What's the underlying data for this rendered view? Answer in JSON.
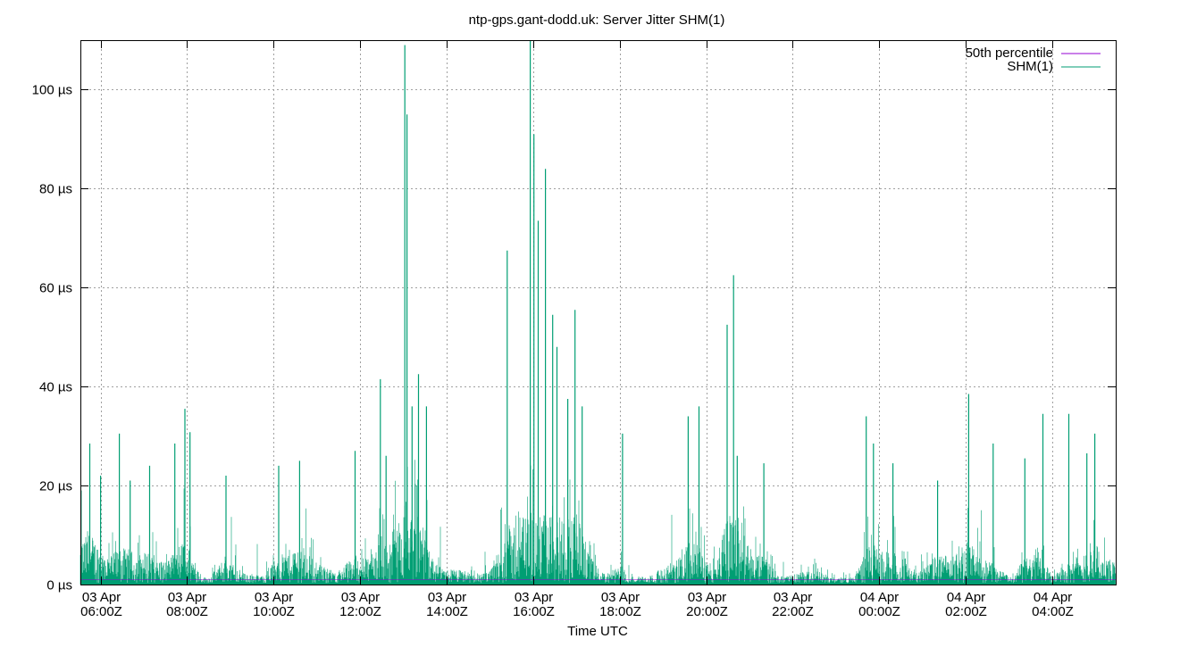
{
  "chart_data": {
    "type": "line",
    "title": "ntp-gps.gant-dodd.uk: Server Jitter SHM(1)",
    "xlabel": "Time UTC",
    "ylabel": "",
    "xlim": [
      "03 Apr 05:32",
      "04 Apr 05:28"
    ],
    "ylim": [
      0,
      110
    ],
    "grid": true,
    "legend_position": "top-right",
    "x_ticks": [
      {
        "date": "03 Apr",
        "time": "06:00Z"
      },
      {
        "date": "03 Apr",
        "time": "08:00Z"
      },
      {
        "date": "03 Apr",
        "time": "10:00Z"
      },
      {
        "date": "03 Apr",
        "time": "12:00Z"
      },
      {
        "date": "03 Apr",
        "time": "14:00Z"
      },
      {
        "date": "03 Apr",
        "time": "16:00Z"
      },
      {
        "date": "03 Apr",
        "time": "18:00Z"
      },
      {
        "date": "03 Apr",
        "time": "20:00Z"
      },
      {
        "date": "03 Apr",
        "time": "22:00Z"
      },
      {
        "date": "04 Apr",
        "time": "00:00Z"
      },
      {
        "date": "04 Apr",
        "time": "02:00Z"
      },
      {
        "date": "04 Apr",
        "time": "04:00Z"
      }
    ],
    "y_ticks": [
      {
        "value": 0,
        "label": "0 µs"
      },
      {
        "value": 20,
        "label": "20 µs"
      },
      {
        "value": 40,
        "label": "40 µs"
      },
      {
        "value": 60,
        "label": "60 µs"
      },
      {
        "value": 80,
        "label": "80 µs"
      },
      {
        "value": 100,
        "label": "100 µs"
      }
    ],
    "series": [
      {
        "name": "50th percentile",
        "color": "#9400d3",
        "value_us": 1
      },
      {
        "name": "SHM(1)",
        "color": "#009e73",
        "typical_range_us": [
          0,
          10
        ],
        "peaks": [
          {
            "t": "03 Apr 05:33",
            "v": 19
          },
          {
            "t": "03 Apr 05:45",
            "v": 28.5
          },
          {
            "t": "03 Apr 06:00",
            "v": 22
          },
          {
            "t": "03 Apr 06:26",
            "v": 30.5
          },
          {
            "t": "03 Apr 06:41",
            "v": 21
          },
          {
            "t": "03 Apr 07:08",
            "v": 24
          },
          {
            "t": "03 Apr 07:43",
            "v": 28.5
          },
          {
            "t": "03 Apr 07:57",
            "v": 35.5
          },
          {
            "t": "03 Apr 08:04",
            "v": 30.8
          },
          {
            "t": "03 Apr 08:54",
            "v": 22
          },
          {
            "t": "03 Apr 10:07",
            "v": 24
          },
          {
            "t": "03 Apr 10:36",
            "v": 25
          },
          {
            "t": "03 Apr 11:53",
            "v": 27
          },
          {
            "t": "03 Apr 12:28",
            "v": 41.5
          },
          {
            "t": "03 Apr 12:36",
            "v": 26
          },
          {
            "t": "03 Apr 13:02",
            "v": 109
          },
          {
            "t": "03 Apr 13:05",
            "v": 95
          },
          {
            "t": "03 Apr 13:12",
            "v": 36
          },
          {
            "t": "03 Apr 13:21",
            "v": 42.5
          },
          {
            "t": "03 Apr 13:32",
            "v": 36
          },
          {
            "t": "03 Apr 15:24",
            "v": 67.5
          },
          {
            "t": "03 Apr 15:56",
            "v": 110
          },
          {
            "t": "03 Apr 16:01",
            "v": 91
          },
          {
            "t": "03 Apr 16:07",
            "v": 73.5
          },
          {
            "t": "03 Apr 16:17",
            "v": 84
          },
          {
            "t": "03 Apr 16:27",
            "v": 54.5
          },
          {
            "t": "03 Apr 16:33",
            "v": 48
          },
          {
            "t": "03 Apr 16:48",
            "v": 37.5
          },
          {
            "t": "03 Apr 16:58",
            "v": 55.5
          },
          {
            "t": "03 Apr 17:08",
            "v": 36
          },
          {
            "t": "03 Apr 18:04",
            "v": 30.5
          },
          {
            "t": "03 Apr 19:35",
            "v": 34
          },
          {
            "t": "03 Apr 19:50",
            "v": 36
          },
          {
            "t": "03 Apr 20:29",
            "v": 52.5
          },
          {
            "t": "03 Apr 20:38",
            "v": 62.5
          },
          {
            "t": "03 Apr 20:43",
            "v": 26
          },
          {
            "t": "03 Apr 21:20",
            "v": 24.5
          },
          {
            "t": "03 Apr 23:42",
            "v": 34
          },
          {
            "t": "03 Apr 23:52",
            "v": 28.5
          },
          {
            "t": "04 Apr 00:19",
            "v": 24.5
          },
          {
            "t": "04 Apr 01:21",
            "v": 21
          },
          {
            "t": "04 Apr 02:04",
            "v": 38.5
          },
          {
            "t": "04 Apr 02:38",
            "v": 28.5
          },
          {
            "t": "04 Apr 03:22",
            "v": 25.5
          },
          {
            "t": "04 Apr 03:47",
            "v": 34.5
          },
          {
            "t": "04 Apr 04:23",
            "v": 34.5
          },
          {
            "t": "04 Apr 04:48",
            "v": 26.5
          },
          {
            "t": "04 Apr 04:59",
            "v": 30.5
          }
        ]
      }
    ]
  }
}
